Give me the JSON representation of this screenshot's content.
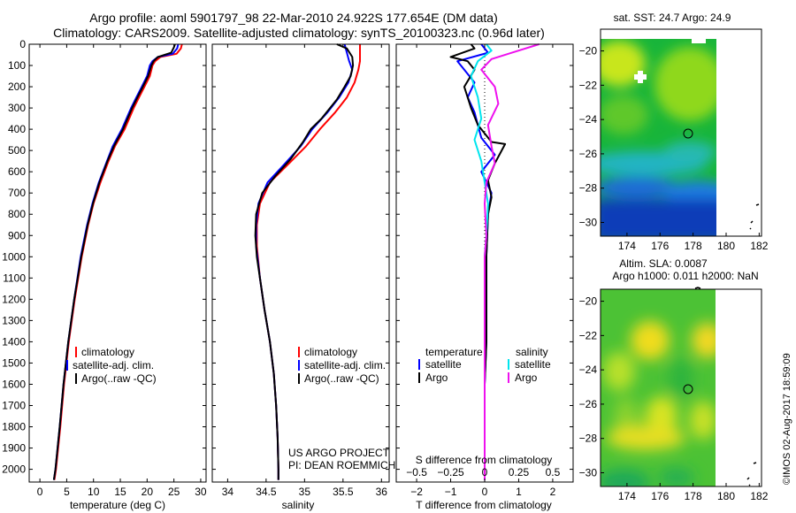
{
  "title": {
    "line1": "Argo profile: aoml 5901797_98 22-Mar-2010 24.922S 177.654E (DM data)",
    "line2": "Climatology: CARS2009. Satellite-adjusted climatology: synTS_20100323.nc (0.96d later)"
  },
  "footer": {
    "project": "US ARGO PROJECT",
    "pi": "PI: DEAN ROEMMICH",
    "credit": "©IMOS 02-Aug-2017 18:59:09"
  },
  "colors": {
    "climatology": "#ff0000",
    "satellite": "#0000ff",
    "argo": "#000000",
    "salinity_satellite": "#00e5ee",
    "salinity_argo": "#ee11ee"
  },
  "chart_data": [
    {
      "type": "line",
      "id": "temperature",
      "xlabel": "temperature (deg C)",
      "ylabel": "",
      "xlim": [
        -2,
        31
      ],
      "ylim": [
        2060,
        0
      ],
      "xticks": [
        0,
        5,
        10,
        15,
        20,
        25,
        30
      ],
      "yticks": [
        0,
        100,
        200,
        300,
        400,
        500,
        600,
        700,
        800,
        900,
        1000,
        1100,
        1200,
        1300,
        1400,
        1500,
        1600,
        1700,
        1800,
        1900,
        2000
      ],
      "legend": [
        "climatology",
        "satellite-adj. clim.",
        "Argo(..raw -QC)"
      ],
      "series": [
        {
          "name": "climatology",
          "color": "#ff0000",
          "points": [
            [
              26.5,
              0
            ],
            [
              26.3,
              20
            ],
            [
              25.5,
              45
            ],
            [
              22.5,
              60
            ],
            [
              21.5,
              80
            ],
            [
              21.0,
              100
            ],
            [
              20.5,
              150
            ],
            [
              19.5,
              200
            ],
            [
              18.5,
              250
            ],
            [
              17.5,
              300
            ],
            [
              15.8,
              400
            ],
            [
              14.0,
              480
            ],
            [
              12.8,
              550
            ],
            [
              11.3,
              650
            ],
            [
              10.0,
              750
            ],
            [
              9.0,
              850
            ],
            [
              7.8,
              1000
            ],
            [
              6.5,
              1200
            ],
            [
              5.4,
              1400
            ],
            [
              4.5,
              1600
            ],
            [
              3.8,
              1800
            ],
            [
              3.0,
              2000
            ],
            [
              2.7,
              2050
            ]
          ]
        },
        {
          "name": "satellite-adj. clim.",
          "color": "#0000ff",
          "points": [
            [
              25.8,
              0
            ],
            [
              25.6,
              20
            ],
            [
              24.8,
              45
            ],
            [
              22.0,
              60
            ],
            [
              21.0,
              80
            ],
            [
              20.5,
              100
            ],
            [
              20.0,
              150
            ],
            [
              19.0,
              200
            ],
            [
              18.0,
              250
            ],
            [
              17.0,
              300
            ],
            [
              15.3,
              400
            ],
            [
              13.6,
              480
            ],
            [
              12.5,
              550
            ],
            [
              11.0,
              650
            ],
            [
              9.8,
              750
            ],
            [
              8.8,
              850
            ],
            [
              7.6,
              1000
            ],
            [
              6.4,
              1200
            ],
            [
              5.3,
              1400
            ],
            [
              4.4,
              1600
            ],
            [
              3.7,
              1800
            ],
            [
              2.9,
              2000
            ],
            [
              2.6,
              2050
            ]
          ]
        },
        {
          "name": "Argo(..raw -QC)",
          "color": "#000000",
          "points": [
            [
              25.2,
              0
            ],
            [
              25.0,
              15
            ],
            [
              24.5,
              40
            ],
            [
              22.0,
              60
            ],
            [
              21.2,
              80
            ],
            [
              20.8,
              100
            ],
            [
              20.2,
              150
            ],
            [
              19.2,
              200
            ],
            [
              18.2,
              250
            ],
            [
              17.2,
              300
            ],
            [
              15.5,
              400
            ],
            [
              13.8,
              480
            ],
            [
              12.6,
              550
            ],
            [
              11.1,
              650
            ],
            [
              9.9,
              750
            ],
            [
              8.9,
              850
            ],
            [
              7.7,
              1000
            ],
            [
              6.4,
              1200
            ],
            [
              5.3,
              1400
            ],
            [
              4.4,
              1600
            ],
            [
              3.7,
              1800
            ],
            [
              2.9,
              2000
            ],
            [
              2.6,
              2050
            ]
          ]
        }
      ]
    },
    {
      "type": "line",
      "id": "salinity",
      "xlabel": "salinity",
      "ylabel": "",
      "xlim": [
        33.8,
        36.1
      ],
      "ylim": [
        2060,
        0
      ],
      "xticks": [
        34,
        34.5,
        35,
        35.5,
        36
      ],
      "legend": [
        "climatology",
        "satellite-adj. clim.",
        "Argo(..raw -QC)"
      ],
      "series": [
        {
          "name": "climatology",
          "color": "#ff0000",
          "points": [
            [
              35.72,
              0
            ],
            [
              35.72,
              40
            ],
            [
              35.72,
              80
            ],
            [
              35.7,
              120
            ],
            [
              35.65,
              180
            ],
            [
              35.55,
              250
            ],
            [
              35.4,
              320
            ],
            [
              35.2,
              400
            ],
            [
              35.02,
              480
            ],
            [
              34.8,
              560
            ],
            [
              34.55,
              650
            ],
            [
              34.42,
              750
            ],
            [
              34.38,
              850
            ],
            [
              34.38,
              950
            ],
            [
              34.42,
              1100
            ],
            [
              34.48,
              1250
            ],
            [
              34.55,
              1400
            ],
            [
              34.6,
              1550
            ],
            [
              34.63,
              1700
            ],
            [
              34.65,
              1850
            ],
            [
              34.66,
              2000
            ],
            [
              34.66,
              2050
            ]
          ]
        },
        {
          "name": "satellite-adj. clim.",
          "color": "#0000ff",
          "points": [
            [
              35.52,
              0
            ],
            [
              35.55,
              40
            ],
            [
              35.58,
              80
            ],
            [
              35.62,
              120
            ],
            [
              35.57,
              180
            ],
            [
              35.45,
              250
            ],
            [
              35.3,
              320
            ],
            [
              35.1,
              400
            ],
            [
              34.95,
              480
            ],
            [
              34.75,
              560
            ],
            [
              34.52,
              650
            ],
            [
              34.4,
              750
            ],
            [
              34.37,
              850
            ],
            [
              34.37,
              950
            ],
            [
              34.42,
              1100
            ],
            [
              34.48,
              1250
            ],
            [
              34.55,
              1400
            ],
            [
              34.6,
              1550
            ],
            [
              34.63,
              1700
            ],
            [
              34.65,
              1850
            ],
            [
              34.66,
              2000
            ],
            [
              34.66,
              2050
            ]
          ]
        },
        {
          "name": "Argo(..raw -QC)",
          "color": "#000000",
          "points": [
            [
              35.42,
              0
            ],
            [
              35.55,
              20
            ],
            [
              35.62,
              60
            ],
            [
              35.63,
              100
            ],
            [
              35.6,
              150
            ],
            [
              35.52,
              200
            ],
            [
              35.42,
              260
            ],
            [
              35.22,
              350
            ],
            [
              35.08,
              400
            ],
            [
              34.98,
              460
            ],
            [
              34.82,
              540
            ],
            [
              34.62,
              620
            ],
            [
              34.45,
              700
            ],
            [
              34.37,
              800
            ],
            [
              34.36,
              900
            ],
            [
              34.38,
              1000
            ],
            [
              34.42,
              1100
            ],
            [
              34.48,
              1250
            ],
            [
              34.55,
              1400
            ],
            [
              34.6,
              1550
            ],
            [
              34.63,
              1700
            ],
            [
              34.65,
              1850
            ],
            [
              34.66,
              2000
            ],
            [
              34.66,
              2050
            ]
          ]
        }
      ]
    },
    {
      "type": "line",
      "id": "difference",
      "xlabel": "T difference from climatology",
      "xlabel2": "S difference from climatology",
      "ylabel": "",
      "xlim": [
        -2.6,
        2.6
      ],
      "ylim": [
        2060,
        0
      ],
      "xticks": [
        -2,
        -1,
        0,
        1,
        2
      ],
      "xticks2": [
        -0.5,
        -0.25,
        0,
        0.25,
        0.5
      ],
      "legend_headers": [
        "temperature",
        "salinity"
      ],
      "legend": [
        "satellite",
        "Argo",
        "satellite",
        "Argo"
      ],
      "series": [
        {
          "name": "satellite",
          "group": "temperature",
          "color": "#0000ff",
          "points": [
            [
              -0.1,
              0
            ],
            [
              0.1,
              40
            ],
            [
              -0.8,
              80
            ],
            [
              -0.6,
              120
            ],
            [
              -0.3,
              180
            ],
            [
              -0.5,
              250
            ],
            [
              -0.3,
              320
            ],
            [
              -0.2,
              380
            ],
            [
              -0.1,
              440
            ],
            [
              0.3,
              520
            ],
            [
              -0.1,
              600
            ],
            [
              0.2,
              700
            ],
            [
              0.1,
              800
            ],
            [
              0.05,
              1000
            ],
            [
              0.05,
              1200
            ],
            [
              0.05,
              1400
            ],
            [
              0.0,
              1600
            ],
            [
              0.0,
              1800
            ],
            [
              0.0,
              2000
            ],
            [
              0.0,
              2050
            ]
          ]
        },
        {
          "name": "Argo",
          "group": "temperature",
          "color": "#000000",
          "points": [
            [
              -0.4,
              0
            ],
            [
              -0.3,
              20
            ],
            [
              -1.0,
              60
            ],
            [
              -0.5,
              80
            ],
            [
              -0.3,
              120
            ],
            [
              -0.6,
              200
            ],
            [
              -0.4,
              300
            ],
            [
              -0.2,
              380
            ],
            [
              0.2,
              460
            ],
            [
              0.6,
              470
            ],
            [
              0.3,
              560
            ],
            [
              0.1,
              640
            ],
            [
              0.2,
              720
            ],
            [
              0.1,
              800
            ],
            [
              0.05,
              1000
            ],
            [
              0.05,
              1200
            ],
            [
              0.05,
              1400
            ],
            [
              0.0,
              1600
            ],
            [
              0.0,
              1800
            ],
            [
              0.0,
              2000
            ],
            [
              0.0,
              2050
            ]
          ]
        },
        {
          "name": "satellite",
          "group": "salinity",
          "color": "#00e5ee",
          "points": [
            [
              0.05,
              0
            ],
            [
              0.2,
              30
            ],
            [
              -0.2,
              80
            ],
            [
              -0.4,
              150
            ],
            [
              -0.2,
              250
            ],
            [
              -0.1,
              350
            ],
            [
              -0.3,
              450
            ],
            [
              -0.1,
              550
            ],
            [
              0.0,
              650
            ],
            [
              0.1,
              750
            ],
            [
              0.05,
              900
            ],
            [
              0.0,
              1000
            ],
            [
              0.0,
              1200
            ],
            [
              0.0,
              1400
            ],
            [
              0.0,
              1600
            ],
            [
              0.0,
              1800
            ],
            [
              0.0,
              2000
            ],
            [
              0.0,
              2050
            ]
          ]
        },
        {
          "name": "Argo",
          "group": "salinity",
          "color": "#ee11ee",
          "points": [
            [
              1.6,
              0
            ],
            [
              0.8,
              40
            ],
            [
              0.2,
              70
            ],
            [
              -0.1,
              120
            ],
            [
              0.3,
              200
            ],
            [
              0.4,
              280
            ],
            [
              0.1,
              380
            ],
            [
              0.2,
              480
            ],
            [
              0.3,
              560
            ],
            [
              0.05,
              650
            ],
            [
              0.0,
              750
            ],
            [
              0.05,
              900
            ],
            [
              0.0,
              1000
            ],
            [
              0.0,
              1200
            ],
            [
              0.0,
              1400
            ],
            [
              0.0,
              1600
            ],
            [
              0.0,
              1800
            ],
            [
              0.0,
              2000
            ],
            [
              0.0,
              2050
            ]
          ]
        }
      ]
    },
    {
      "type": "heatmap",
      "id": "sst-map",
      "title": "sat. SST: 24.7  Argo: 24.9",
      "xlim": [
        172.4,
        180
      ],
      "ylim": [
        -30.8,
        -19.3
      ],
      "xticks": [
        174,
        176,
        178,
        180,
        182
      ],
      "yticks": [
        -20,
        -22,
        -24,
        -26,
        -28,
        -30
      ],
      "profile_location": [
        177.654,
        -24.922
      ]
    },
    {
      "type": "heatmap",
      "id": "sla-map",
      "title": "Altim. SLA: 0.0087",
      "subtitle": "Argo h1000: 0.011 h2000: NaN",
      "xlim": [
        172.4,
        180
      ],
      "ylim": [
        -30.8,
        -19.3
      ],
      "xticks": [
        174,
        176,
        178,
        180,
        182
      ],
      "yticks": [
        -20,
        -22,
        -24,
        -26,
        -28,
        -30
      ],
      "profile_location": [
        177.654,
        -24.922
      ]
    }
  ]
}
